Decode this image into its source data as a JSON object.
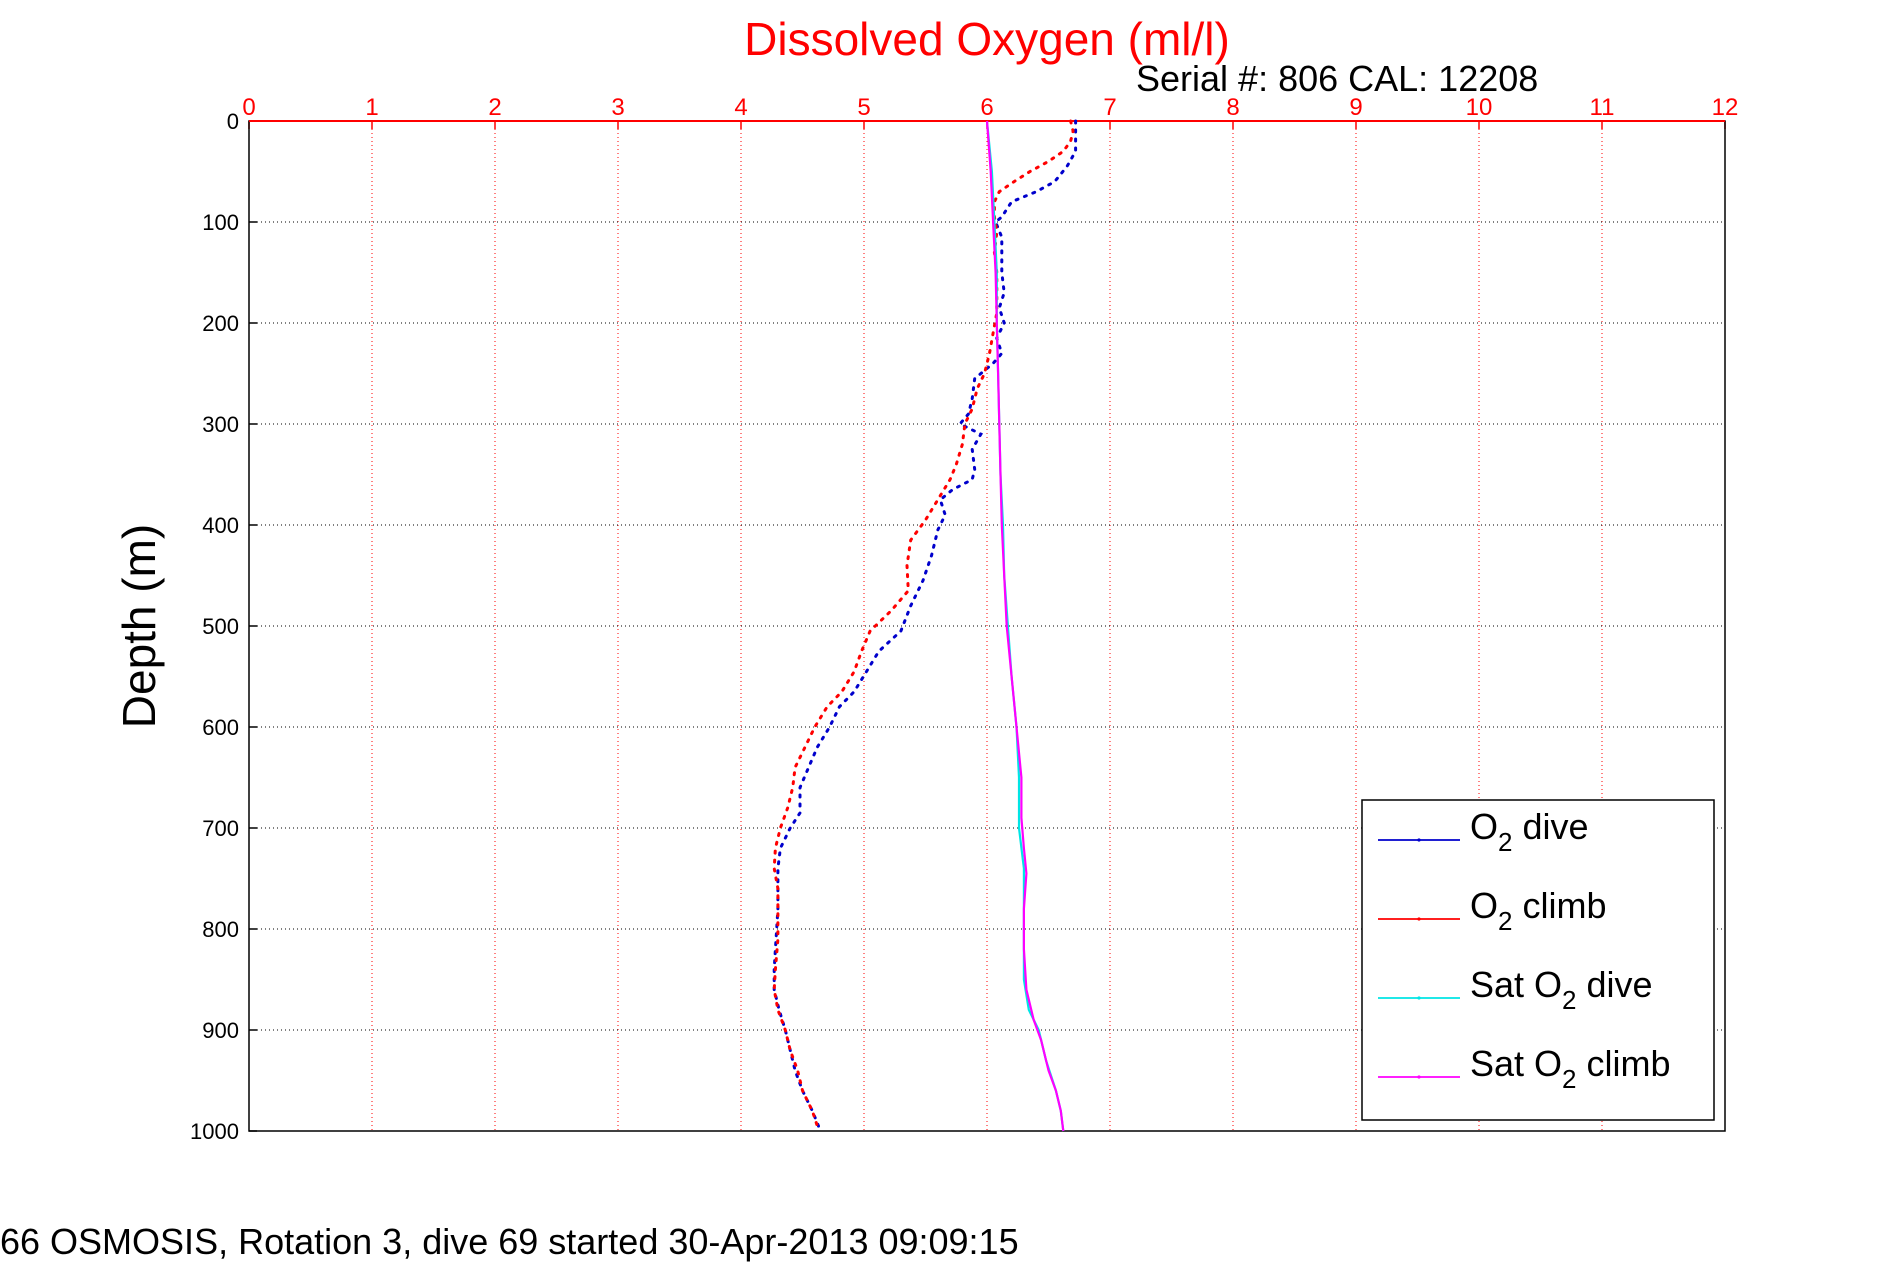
{
  "chart_data": {
    "type": "line",
    "title": "Dissolved Oxygen (ml/l)",
    "subtitle": "Serial #: 806  CAL: 12208",
    "ylabel": "Depth (m)",
    "xlabel": "",
    "footer": "66 OSMOSIS, Rotation 3, dive 69 started 30-Apr-2013 09:09:15",
    "xlim": [
      0,
      12
    ],
    "ylim": [
      0,
      1000
    ],
    "y_reversed": true,
    "x_axis_position": "top",
    "grid": true,
    "legend_position": "bottom-right",
    "x_ticks": [
      "0",
      "1",
      "2",
      "3",
      "4",
      "5",
      "6",
      "7",
      "8",
      "9",
      "10",
      "11",
      "12"
    ],
    "y_ticks": [
      "0",
      "100",
      "200",
      "300",
      "400",
      "500",
      "600",
      "700",
      "800",
      "900",
      "1000"
    ],
    "colors": {
      "axis_top": "#ff0000",
      "title": "#ff0000",
      "o2_dive": "#0000cc",
      "o2_climb": "#ff0000",
      "sat_dive": "#00e5e5",
      "sat_climb": "#ff00ff"
    },
    "series": [
      {
        "name": "O2 dive",
        "legend_main": "O",
        "legend_sub": "2",
        "legend_suffix": " dive",
        "key": "o2_dive",
        "style": "dotted",
        "points": [
          [
            6.72,
            0
          ],
          [
            6.72,
            15
          ],
          [
            6.72,
            30
          ],
          [
            6.65,
            45
          ],
          [
            6.55,
            60
          ],
          [
            6.4,
            70
          ],
          [
            6.2,
            80
          ],
          [
            6.12,
            95
          ],
          [
            6.07,
            100
          ],
          [
            6.12,
            115
          ],
          [
            6.12,
            130
          ],
          [
            6.12,
            150
          ],
          [
            6.14,
            170
          ],
          [
            6.1,
            185
          ],
          [
            6.14,
            200
          ],
          [
            6.08,
            215
          ],
          [
            6.12,
            230
          ],
          [
            6.05,
            240
          ],
          [
            5.9,
            255
          ],
          [
            5.88,
            275
          ],
          [
            5.85,
            290
          ],
          [
            5.78,
            300
          ],
          [
            5.95,
            310
          ],
          [
            5.88,
            325
          ],
          [
            5.9,
            345
          ],
          [
            5.88,
            355
          ],
          [
            5.72,
            365
          ],
          [
            5.62,
            375
          ],
          [
            5.66,
            390
          ],
          [
            5.6,
            405
          ],
          [
            5.55,
            430
          ],
          [
            5.48,
            455
          ],
          [
            5.38,
            480
          ],
          [
            5.3,
            505
          ],
          [
            5.12,
            525
          ],
          [
            5.02,
            545
          ],
          [
            4.92,
            565
          ],
          [
            4.8,
            580
          ],
          [
            4.72,
            600
          ],
          [
            4.62,
            620
          ],
          [
            4.55,
            640
          ],
          [
            4.48,
            660
          ],
          [
            4.48,
            685
          ],
          [
            4.4,
            700
          ],
          [
            4.32,
            720
          ],
          [
            4.3,
            740
          ],
          [
            4.3,
            760
          ],
          [
            4.3,
            780
          ],
          [
            4.29,
            800
          ],
          [
            4.28,
            820
          ],
          [
            4.27,
            840
          ],
          [
            4.27,
            860
          ],
          [
            4.31,
            880
          ],
          [
            4.36,
            900
          ],
          [
            4.4,
            920
          ],
          [
            4.44,
            940
          ],
          [
            4.5,
            960
          ],
          [
            4.58,
            980
          ],
          [
            4.63,
            995
          ],
          [
            4.63,
            1000
          ]
        ]
      },
      {
        "name": "O2 climb",
        "legend_main": "O",
        "legend_sub": "2",
        "legend_suffix": " climb",
        "key": "o2_climb",
        "style": "dotted",
        "points": [
          [
            6.68,
            0
          ],
          [
            6.7,
            10
          ],
          [
            6.68,
            20
          ],
          [
            6.62,
            30
          ],
          [
            6.5,
            40
          ],
          [
            6.35,
            50
          ],
          [
            6.22,
            60
          ],
          [
            6.1,
            70
          ],
          [
            6.06,
            80
          ],
          [
            6.06,
            95
          ],
          [
            6.08,
            110
          ],
          [
            6.06,
            130
          ],
          [
            6.08,
            150
          ],
          [
            6.08,
            170
          ],
          [
            6.08,
            190
          ],
          [
            6.05,
            210
          ],
          [
            6.02,
            230
          ],
          [
            5.98,
            250
          ],
          [
            5.92,
            265
          ],
          [
            5.88,
            285
          ],
          [
            5.82,
            300
          ],
          [
            5.8,
            320
          ],
          [
            5.75,
            340
          ],
          [
            5.7,
            355
          ],
          [
            5.6,
            375
          ],
          [
            5.5,
            395
          ],
          [
            5.38,
            415
          ],
          [
            5.35,
            440
          ],
          [
            5.36,
            465
          ],
          [
            5.22,
            485
          ],
          [
            5.05,
            505
          ],
          [
            4.98,
            525
          ],
          [
            4.92,
            545
          ],
          [
            4.82,
            565
          ],
          [
            4.7,
            580
          ],
          [
            4.6,
            600
          ],
          [
            4.52,
            620
          ],
          [
            4.44,
            640
          ],
          [
            4.42,
            660
          ],
          [
            4.38,
            680
          ],
          [
            4.32,
            700
          ],
          [
            4.28,
            720
          ],
          [
            4.27,
            740
          ],
          [
            4.3,
            760
          ],
          [
            4.3,
            790
          ],
          [
            4.3,
            810
          ],
          [
            4.28,
            840
          ],
          [
            4.27,
            860
          ],
          [
            4.3,
            880
          ],
          [
            4.36,
            900
          ],
          [
            4.4,
            920
          ],
          [
            4.46,
            940
          ],
          [
            4.5,
            960
          ],
          [
            4.58,
            980
          ],
          [
            4.62,
            995
          ],
          [
            4.63,
            1000
          ]
        ]
      },
      {
        "name": "Sat O2 dive",
        "legend_main": "Sat O",
        "legend_sub": "2",
        "legend_suffix": " dive",
        "key": "sat_dive",
        "style": "solid",
        "points": [
          [
            6.0,
            0
          ],
          [
            6.04,
            50
          ],
          [
            6.06,
            100
          ],
          [
            6.08,
            150
          ],
          [
            6.08,
            200
          ],
          [
            6.09,
            250
          ],
          [
            6.1,
            300
          ],
          [
            6.11,
            350
          ],
          [
            6.13,
            400
          ],
          [
            6.14,
            450
          ],
          [
            6.17,
            500
          ],
          [
            6.2,
            550
          ],
          [
            6.24,
            600
          ],
          [
            6.26,
            650
          ],
          [
            6.26,
            700
          ],
          [
            6.3,
            740
          ],
          [
            6.3,
            760
          ],
          [
            6.3,
            800
          ],
          [
            6.3,
            850
          ],
          [
            6.34,
            880
          ],
          [
            6.42,
            900
          ],
          [
            6.48,
            930
          ],
          [
            6.56,
            960
          ],
          [
            6.6,
            980
          ],
          [
            6.62,
            1000
          ]
        ]
      },
      {
        "name": "Sat O2 climb",
        "legend_main": "Sat O",
        "legend_sub": "2",
        "legend_suffix": " climb",
        "key": "sat_climb",
        "style": "solid",
        "points": [
          [
            6.0,
            0
          ],
          [
            6.03,
            50
          ],
          [
            6.05,
            100
          ],
          [
            6.07,
            150
          ],
          [
            6.08,
            200
          ],
          [
            6.09,
            250
          ],
          [
            6.1,
            300
          ],
          [
            6.11,
            350
          ],
          [
            6.12,
            400
          ],
          [
            6.14,
            450
          ],
          [
            6.16,
            500
          ],
          [
            6.2,
            550
          ],
          [
            6.24,
            600
          ],
          [
            6.28,
            650
          ],
          [
            6.28,
            690
          ],
          [
            6.3,
            720
          ],
          [
            6.32,
            745
          ],
          [
            6.3,
            780
          ],
          [
            6.3,
            820
          ],
          [
            6.32,
            860
          ],
          [
            6.38,
            890
          ],
          [
            6.44,
            910
          ],
          [
            6.5,
            940
          ],
          [
            6.56,
            960
          ],
          [
            6.6,
            980
          ],
          [
            6.62,
            1000
          ]
        ]
      }
    ]
  }
}
